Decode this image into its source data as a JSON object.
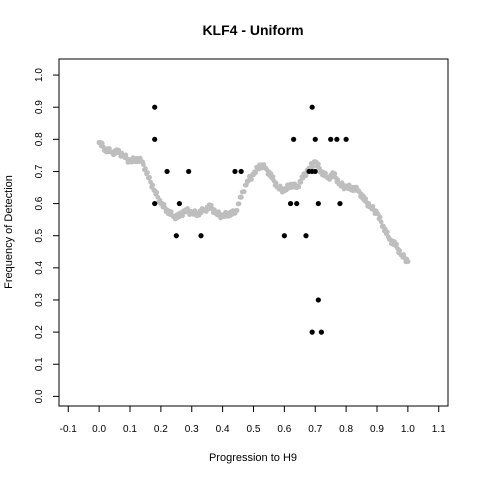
{
  "chart_data": {
    "type": "scatter",
    "title": "KLF4 - Uniform",
    "xlabel": "Progression to H9",
    "ylabel": "Frequency of Detection",
    "xlim": [
      -0.13,
      1.13
    ],
    "ylim": [
      -0.03,
      1.05
    ],
    "x_ticks": [
      "-0.1",
      "0.0",
      "0.1",
      "0.2",
      "0.3",
      "0.4",
      "0.5",
      "0.6",
      "0.7",
      "0.8",
      "0.9",
      "1.0",
      "1.1"
    ],
    "y_ticks": [
      "0.0",
      "0.1",
      "0.2",
      "0.3",
      "0.4",
      "0.5",
      "0.6",
      "0.7",
      "0.8",
      "0.9",
      "1.0"
    ],
    "grid": false,
    "colors": {
      "points": "#000000",
      "trend": "#bebebe"
    },
    "series": [
      {
        "points": [
          [
            0.18,
            0.9
          ],
          [
            0.18,
            0.8
          ],
          [
            0.18,
            0.6
          ],
          [
            0.22,
            0.7
          ],
          [
            0.25,
            0.5
          ],
          [
            0.26,
            0.6
          ],
          [
            0.29,
            0.7
          ],
          [
            0.33,
            0.5
          ],
          [
            0.44,
            0.7
          ],
          [
            0.46,
            0.7
          ],
          [
            0.6,
            0.5
          ],
          [
            0.62,
            0.6
          ],
          [
            0.63,
            0.8
          ],
          [
            0.64,
            0.6
          ],
          [
            0.67,
            0.5
          ],
          [
            0.68,
            0.7
          ],
          [
            0.69,
            0.9
          ],
          [
            0.69,
            0.7
          ],
          [
            0.7,
            0.7
          ],
          [
            0.7,
            0.8
          ],
          [
            0.71,
            0.6
          ],
          [
            0.71,
            0.3
          ],
          [
            0.69,
            0.2
          ],
          [
            0.72,
            0.2
          ],
          [
            0.75,
            0.8
          ],
          [
            0.77,
            0.8
          ],
          [
            0.78,
            0.6
          ],
          [
            0.8,
            0.8
          ]
        ]
      },
      {
        "points": [
          [
            0.0,
            0.79
          ],
          [
            0.02,
            0.77
          ],
          [
            0.04,
            0.76
          ],
          [
            0.06,
            0.76
          ],
          [
            0.08,
            0.75
          ],
          [
            0.1,
            0.73
          ],
          [
            0.12,
            0.74
          ],
          [
            0.14,
            0.73
          ],
          [
            0.16,
            0.68
          ],
          [
            0.18,
            0.64
          ],
          [
            0.2,
            0.6
          ],
          [
            0.22,
            0.58
          ],
          [
            0.24,
            0.56
          ],
          [
            0.26,
            0.56
          ],
          [
            0.28,
            0.58
          ],
          [
            0.3,
            0.57
          ],
          [
            0.32,
            0.57
          ],
          [
            0.34,
            0.58
          ],
          [
            0.36,
            0.59
          ],
          [
            0.38,
            0.57
          ],
          [
            0.4,
            0.56
          ],
          [
            0.42,
            0.57
          ],
          [
            0.44,
            0.57
          ],
          [
            0.46,
            0.62
          ],
          [
            0.48,
            0.67
          ],
          [
            0.5,
            0.69
          ],
          [
            0.52,
            0.72
          ],
          [
            0.54,
            0.71
          ],
          [
            0.56,
            0.68
          ],
          [
            0.58,
            0.65
          ],
          [
            0.6,
            0.64
          ],
          [
            0.62,
            0.66
          ],
          [
            0.64,
            0.65
          ],
          [
            0.66,
            0.68
          ],
          [
            0.68,
            0.71
          ],
          [
            0.7,
            0.73
          ],
          [
            0.72,
            0.7
          ],
          [
            0.74,
            0.68
          ],
          [
            0.76,
            0.69
          ],
          [
            0.78,
            0.66
          ],
          [
            0.8,
            0.65
          ],
          [
            0.82,
            0.65
          ],
          [
            0.84,
            0.64
          ],
          [
            0.86,
            0.61
          ],
          [
            0.88,
            0.59
          ],
          [
            0.9,
            0.57
          ],
          [
            0.92,
            0.53
          ],
          [
            0.94,
            0.49
          ],
          [
            0.96,
            0.47
          ],
          [
            0.98,
            0.44
          ],
          [
            1.0,
            0.42
          ]
        ]
      }
    ]
  }
}
